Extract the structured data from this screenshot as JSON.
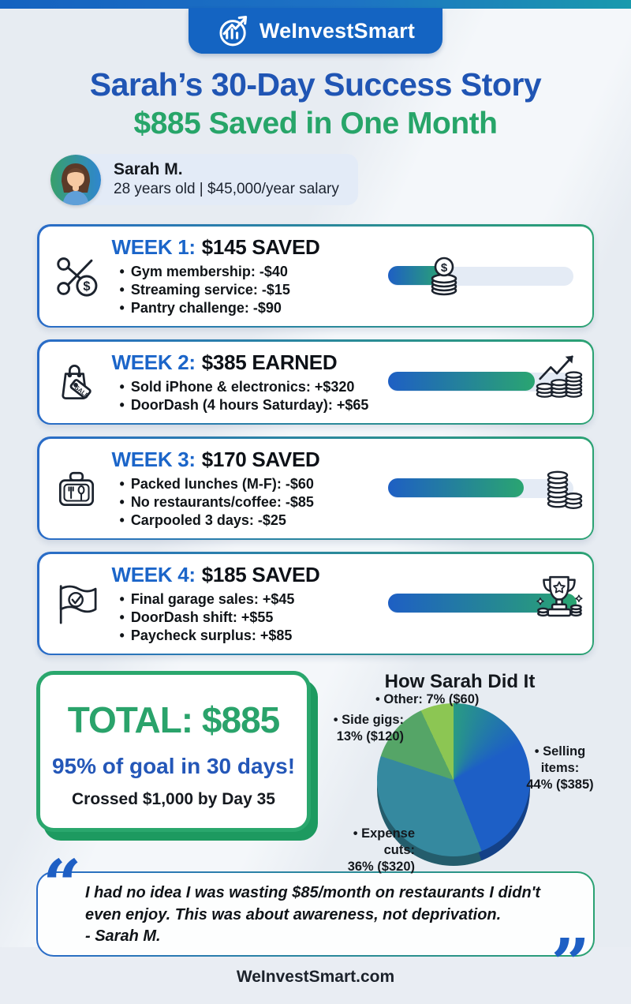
{
  "brand": {
    "name": "WeInvestSmart",
    "logo_icon": "growth-chart-logo-icon"
  },
  "title": {
    "line1": "Sarah’s 30-Day Success Story",
    "line2": "$885 Saved in One Month"
  },
  "profile": {
    "name": "Sarah M.",
    "details": "28 years old | $45,000/year salary",
    "avatar_icon": "woman-avatar"
  },
  "weeks": [
    {
      "label": "WEEK 1:",
      "amount": "$145 SAVED",
      "icon": "scissors-coin-icon",
      "bar_icon": "coin-stack-icon",
      "progress": "30%",
      "items": [
        "Gym membership: -$40",
        "Streaming service: -$15",
        "Pantry challenge: -$90"
      ]
    },
    {
      "label": "WEEK 2:",
      "amount": "$385 EARNED",
      "icon": "sale-bag-icon",
      "bar_icon": "coins-growth-icon",
      "progress": "78%",
      "items": [
        "Sold iPhone & electronics: +$320",
        "DoorDash (4 hours Saturday): +$65"
      ]
    },
    {
      "label": "WEEK 3:",
      "amount": "$170 SAVED",
      "icon": "lunchbox-icon",
      "bar_icon": "coin-stacks-icon",
      "progress": "72%",
      "items": [
        "Packed lunches (M-F): -$60",
        "No restaurants/coffee: -$85",
        "Carpooled 3 days: -$25"
      ]
    },
    {
      "label": "WEEK 4:",
      "amount": "$185 SAVED",
      "icon": "flag-check-icon",
      "bar_icon": "trophy-icon",
      "progress": "100%",
      "items": [
        "Final garage sales: +$45",
        "DoorDash shift: +$55",
        "Paycheck surplus: +$85"
      ]
    }
  ],
  "total": {
    "headline": "TOTAL: $885",
    "subline": "95% of goal in 30 days!",
    "note": "Crossed $1,000 by Day 35"
  },
  "chart_data": {
    "type": "pie",
    "title": "How Sarah Did It",
    "labels": [
      "Selling items",
      "Expense cuts",
      "Side gigs",
      "Other"
    ],
    "values": [
      44,
      36,
      13,
      7
    ],
    "amounts": [
      "$385",
      "$320",
      "$120",
      "$60"
    ],
    "colors": [
      "#1d5fc6",
      "#35899f",
      "#55a567",
      "#8cc653"
    ],
    "start_angle_deg": 0,
    "direction": "clockwise",
    "legend_position": "callouts-around-pie",
    "callouts": [
      {
        "line1": "• Selling items:",
        "line2": "44% ($385)"
      },
      {
        "line1": "• Expense cuts:",
        "line2": "36% ($320)"
      },
      {
        "line1": "• Side gigs:",
        "line2": "13% ($120)"
      },
      {
        "line1": "• Other: 7% ($60)",
        "line2": ""
      }
    ]
  },
  "quote": {
    "open_mark": "“",
    "text": "I had no idea I was wasting $85/month on restaurants I didn't even enjoy. This was about awareness, not deprivation.",
    "attribution": "- Sarah M.",
    "close_mark": "”"
  },
  "footer": {
    "site": "WeInvestSmart.com"
  },
  "colors": {
    "accent_blue": "#1e5fc4",
    "accent_green": "#27a569",
    "bar_track": "#e4ebf5",
    "header_bar": "#1464c2"
  }
}
